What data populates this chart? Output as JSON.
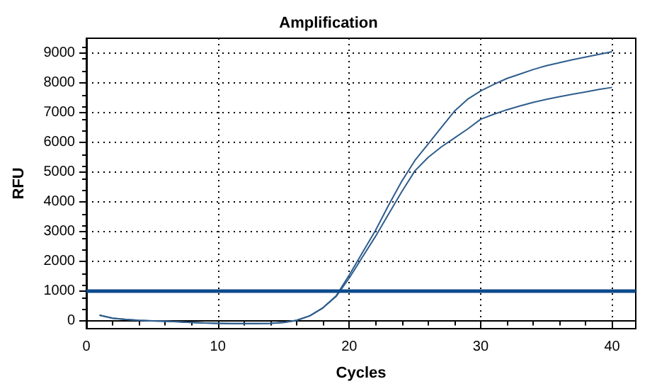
{
  "chart_data": {
    "type": "line",
    "title": "Amplification",
    "xlabel": "Cycles",
    "ylabel": "RFU",
    "x": [
      1,
      2,
      3,
      4,
      5,
      6,
      7,
      8,
      9,
      10,
      11,
      12,
      13,
      14,
      15,
      16,
      17,
      18,
      19,
      20,
      21,
      22,
      23,
      24,
      25,
      26,
      27,
      28,
      29,
      30,
      31,
      32,
      33,
      34,
      35,
      36,
      37,
      38,
      39,
      40
    ],
    "series": [
      {
        "color": "#2f5d8c",
        "values": [
          200,
          100,
          60,
          30,
          10,
          0,
          -20,
          -40,
          -60,
          -70,
          -80,
          -80,
          -80,
          -70,
          -40,
          30,
          180,
          450,
          850,
          1550,
          2300,
          3050,
          3900,
          4700,
          5400,
          5950,
          6500,
          7050,
          7450,
          7730,
          7950,
          8150,
          8300,
          8450,
          8580,
          8680,
          8780,
          8870,
          8960,
          9050
        ]
      },
      {
        "color": "#2f5d8c",
        "values": [
          200,
          100,
          60,
          30,
          10,
          0,
          -20,
          -40,
          -60,
          -70,
          -80,
          -80,
          -80,
          -70,
          -40,
          30,
          180,
          450,
          830,
          1450,
          2150,
          2850,
          3600,
          4350,
          5050,
          5500,
          5850,
          6150,
          6450,
          6780,
          6950,
          7100,
          7230,
          7350,
          7450,
          7540,
          7620,
          7700,
          7780,
          7850
        ]
      }
    ],
    "ref_lines": [
      {
        "axis": "y",
        "value": 1000,
        "color": "#0d4a8c"
      }
    ],
    "xlim": [
      0,
      41.8
    ],
    "xticks": [
      0,
      10,
      20,
      30,
      40
    ],
    "ylim": [
      -250,
      9500
    ],
    "yticks": [
      0,
      1000,
      2000,
      3000,
      4000,
      5000,
      6000,
      7000,
      8000,
      9000
    ],
    "grid": true,
    "marker": "none",
    "line_style": "solid"
  }
}
